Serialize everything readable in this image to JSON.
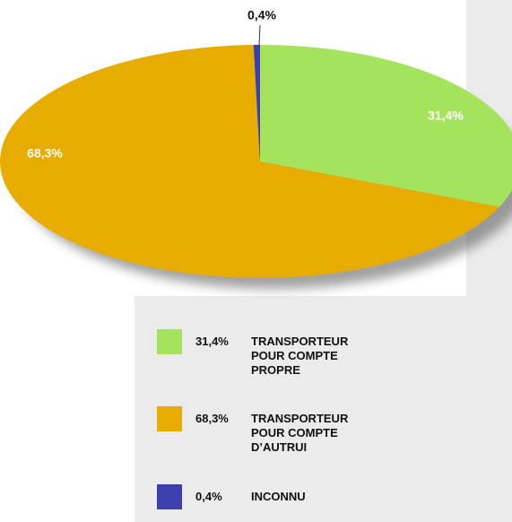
{
  "chart_data": {
    "type": "pie",
    "categories": [
      "TRANSPORTEUR POUR COMPTE PROPRE",
      "TRANSPORTEUR POUR COMPTE D’AUTRUI",
      "INCONNU"
    ],
    "values": [
      31.4,
      68.3,
      0.4
    ],
    "value_labels": [
      "31,4%",
      "68,3%",
      "0,4%"
    ],
    "colors": [
      "#a6e35c",
      "#e6ad00",
      "#3d3fad"
    ]
  }
}
